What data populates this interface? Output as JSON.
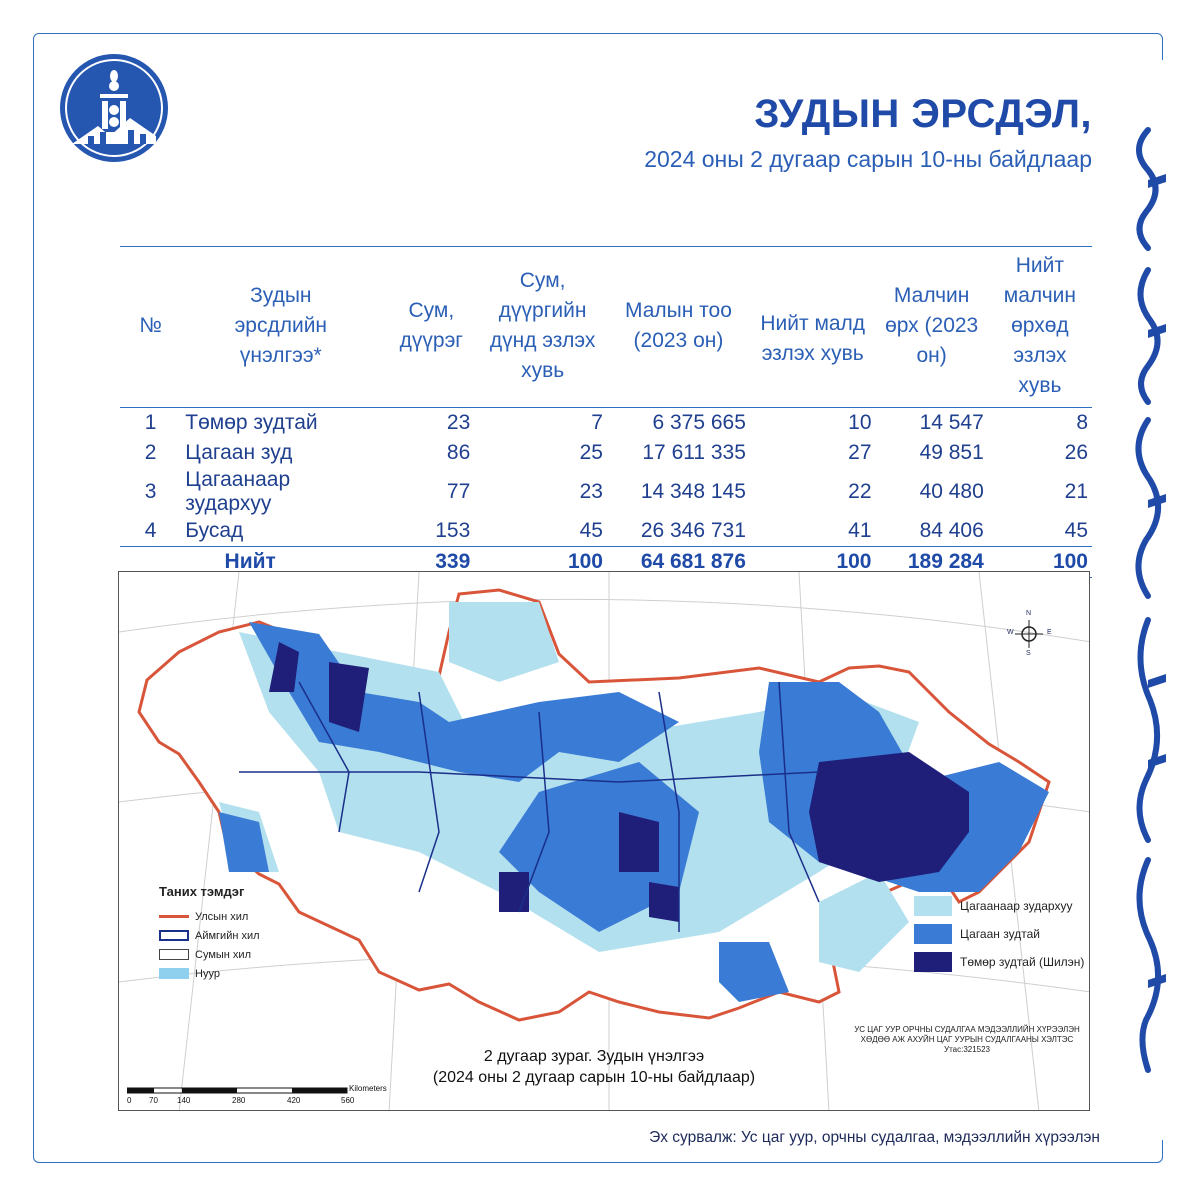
{
  "header": {
    "title": "ЗУДЫН ЭРСДЭЛ,",
    "subtitle": "2024 оны 2 дугаар сарын 10-ны байдлаар"
  },
  "colors": {
    "accent": "#1f4aa8",
    "line": "#2b6fc0",
    "light_blue": "#b3e0ee",
    "mid_blue": "#3a7bd5",
    "dark_blue": "#1f1f7a",
    "border_red": "#d8553a"
  },
  "logo": {
    "icon": "soyombo-emblem-icon"
  },
  "table": {
    "headers": {
      "no": "№",
      "assessment": "Зудын эрсдлийн үнэлгээ*",
      "soums": "Сум, дүүрэг",
      "soum_share": "Сум, дүүргийн дүнд эзлэх хувь",
      "livestock": "Малын тоо (2023 он)",
      "livestock_share": "Нийт малд эзлэх хувь",
      "herders": "Малчин өрх (2023 он)",
      "herders_share": "Нийт малчин өрхөд эзлэх хувь"
    },
    "rows": [
      {
        "no": "1",
        "assessment": "Төмөр зудтай",
        "soums": "23",
        "soum_share": "7",
        "livestock": "6 375 665",
        "livestock_share": "10",
        "herders": "14 547",
        "herders_share": "8"
      },
      {
        "no": "2",
        "assessment": "Цагаан зуд",
        "soums": "86",
        "soum_share": "25",
        "livestock": "17 611 335",
        "livestock_share": "27",
        "herders": "49 851",
        "herders_share": "26"
      },
      {
        "no": "3",
        "assessment": "Цагаанаар зудархуу",
        "soums": "77",
        "soum_share": "23",
        "livestock": "14 348 145",
        "livestock_share": "22",
        "herders": "40 480",
        "herders_share": "21"
      },
      {
        "no": "4",
        "assessment": "Бусад",
        "soums": "153",
        "soum_share": "45",
        "livestock": "26 346 731",
        "livestock_share": "41",
        "herders": "84 406",
        "herders_share": "45"
      }
    ],
    "total": {
      "label": "Нийт",
      "soums": "339",
      "soum_share": "100",
      "livestock": "64 681 876",
      "livestock_share": "100",
      "herders": "189 284",
      "herders_share": "100"
    }
  },
  "map": {
    "legend_title": "Таних тэмдэг",
    "legend_left": [
      "Улсын хил",
      "Аймгийн хил",
      "Сумын хил",
      "Нуур"
    ],
    "legend_right": [
      "Цагаанаар зудархуу",
      "Цагаан зудтай",
      "Төмөр зудтай (Шилэн)"
    ],
    "compass": {
      "n": "N",
      "s": "S",
      "e": "E",
      "w": "W"
    },
    "agency_line1": "УС ЦАГ УУР ОРЧНЫ СУДАЛГАА МЭДЭЭЛЛИЙН ХҮРЭЭЛЭН",
    "agency_line2": "ХӨДӨӨ АЖ АХУЙН ЦАГ УУРЫН СУДАЛГААНЫ ХЭЛТЭС",
    "agency_line3": "Утас:321523",
    "caption_line1": "2 дугаар зураг. Зудын үнэлгээ",
    "caption_line2": "(2024 оны 2 дугаар сарын 10-ны байдлаар)",
    "scale_unit": "Kilometers",
    "scale_ticks": [
      "0",
      "70",
      "140",
      "280",
      "420",
      "560"
    ]
  },
  "footer": {
    "source": "Эх сурвалж: Ус цаг уур, орчны судалгаа, мэдээллийн хүрээлэн"
  }
}
